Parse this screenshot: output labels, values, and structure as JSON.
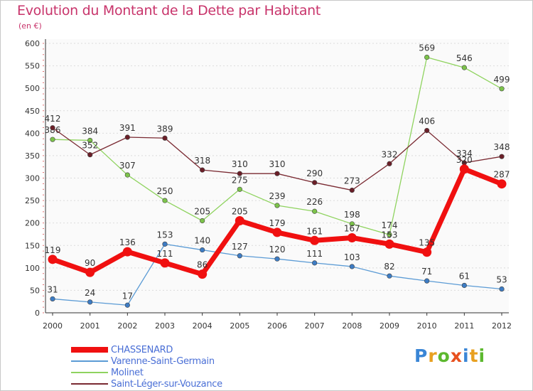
{
  "title": "Evolution du Montant de la Dette par Habitant",
  "subtitle": "(en €)",
  "logo_text": "Proxiti",
  "chart_data": {
    "type": "line",
    "categories": [
      "2000",
      "2001",
      "2002",
      "2003",
      "2004",
      "2005",
      "2006",
      "2007",
      "2008",
      "2009",
      "2010",
      "2011",
      "2012"
    ],
    "ylim": [
      0,
      600
    ],
    "yticks": [
      0,
      50,
      100,
      150,
      200,
      250,
      300,
      350,
      400,
      450,
      500,
      550,
      600
    ],
    "grid": true,
    "legend_position": "bottom",
    "series": [
      {
        "name": "Varenne-Saint-Germain",
        "color": "#5b9bd5",
        "marker": "#3d7cc4",
        "values": [
          31,
          24,
          17,
          153,
          140,
          127,
          120,
          111,
          103,
          82,
          71,
          61,
          53
        ]
      },
      {
        "name": "Molinet",
        "color": "#8fd35f",
        "marker": "#7cc34a",
        "values": [
          386,
          384,
          307,
          250,
          205,
          275,
          239,
          226,
          198,
          174,
          569,
          546,
          499
        ]
      },
      {
        "name": "Saint-Léger-sur-Vouzance",
        "color": "#7a2a32",
        "marker": "#6b1f28",
        "values": [
          412,
          352,
          391,
          389,
          318,
          310,
          310,
          290,
          273,
          332,
          406,
          334,
          348
        ]
      },
      {
        "name": "CHASSENARD",
        "color": "#f01010",
        "marker": "#f01010",
        "values": [
          119,
          90,
          136,
          111,
          86,
          205,
          179,
          161,
          167,
          153,
          135,
          320,
          287
        ]
      }
    ],
    "legend_order": [
      "CHASSENARD",
      "Varenne-Saint-Germain",
      "Molinet",
      "Saint-Léger-sur-Vouzance"
    ]
  }
}
